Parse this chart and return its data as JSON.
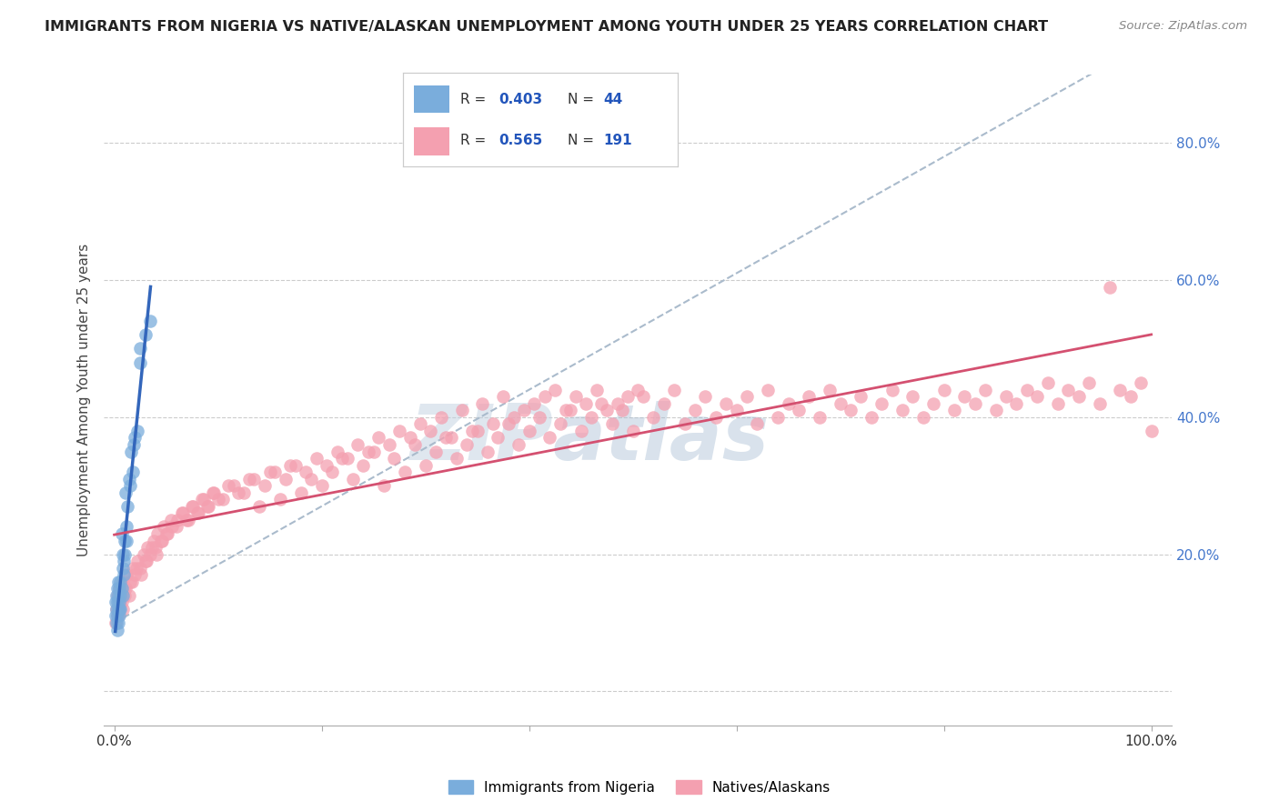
{
  "title": "IMMIGRANTS FROM NIGERIA VS NATIVE/ALASKAN UNEMPLOYMENT AMONG YOUTH UNDER 25 YEARS CORRELATION CHART",
  "source": "Source: ZipAtlas.com",
  "ylabel": "Unemployment Among Youth under 25 years",
  "watermark_zip": "ZIP",
  "watermark_atlas": "atlas",
  "legend_blue_r": "0.403",
  "legend_blue_n": "44",
  "legend_pink_r": "0.565",
  "legend_pink_n": "191",
  "legend_label_blue": "Immigrants from Nigeria",
  "legend_label_pink": "Natives/Alaskans",
  "blue_color": "#7aaddc",
  "pink_color": "#f4a0b0",
  "blue_line_color": "#3366bb",
  "pink_line_color": "#d45070",
  "dashed_line_color": "#aabbcc",
  "background_color": "#ffffff",
  "xlim": [
    -0.01,
    1.02
  ],
  "ylim": [
    -0.05,
    0.9
  ],
  "blue_scatter_x": [
    0.001,
    0.001,
    0.002,
    0.002,
    0.002,
    0.003,
    0.003,
    0.003,
    0.003,
    0.004,
    0.004,
    0.004,
    0.004,
    0.005,
    0.005,
    0.005,
    0.005,
    0.006,
    0.006,
    0.006,
    0.007,
    0.007,
    0.008,
    0.008,
    0.008,
    0.009,
    0.009,
    0.01,
    0.01,
    0.011,
    0.012,
    0.012,
    0.013,
    0.014,
    0.015,
    0.016,
    0.018,
    0.019,
    0.02,
    0.022,
    0.025,
    0.025,
    0.03,
    0.035
  ],
  "blue_scatter_y": [
    0.13,
    0.11,
    0.12,
    0.1,
    0.14,
    0.09,
    0.13,
    0.15,
    0.11,
    0.12,
    0.14,
    0.1,
    0.16,
    0.13,
    0.11,
    0.15,
    0.12,
    0.14,
    0.16,
    0.12,
    0.15,
    0.23,
    0.14,
    0.18,
    0.2,
    0.17,
    0.19,
    0.2,
    0.22,
    0.29,
    0.22,
    0.24,
    0.27,
    0.31,
    0.3,
    0.35,
    0.32,
    0.36,
    0.37,
    0.38,
    0.48,
    0.5,
    0.52,
    0.54
  ],
  "pink_scatter_x": [
    0.001,
    0.002,
    0.003,
    0.003,
    0.004,
    0.005,
    0.005,
    0.006,
    0.007,
    0.008,
    0.008,
    0.009,
    0.01,
    0.012,
    0.015,
    0.018,
    0.02,
    0.022,
    0.025,
    0.028,
    0.03,
    0.032,
    0.035,
    0.038,
    0.04,
    0.042,
    0.045,
    0.048,
    0.05,
    0.055,
    0.06,
    0.065,
    0.07,
    0.075,
    0.08,
    0.085,
    0.09,
    0.095,
    0.1,
    0.11,
    0.12,
    0.13,
    0.14,
    0.15,
    0.16,
    0.17,
    0.18,
    0.19,
    0.2,
    0.21,
    0.22,
    0.23,
    0.24,
    0.25,
    0.26,
    0.27,
    0.28,
    0.29,
    0.3,
    0.31,
    0.32,
    0.33,
    0.34,
    0.35,
    0.36,
    0.37,
    0.38,
    0.39,
    0.4,
    0.41,
    0.42,
    0.43,
    0.44,
    0.45,
    0.46,
    0.47,
    0.48,
    0.49,
    0.5,
    0.51,
    0.52,
    0.53,
    0.54,
    0.55,
    0.56,
    0.57,
    0.58,
    0.59,
    0.6,
    0.61,
    0.62,
    0.63,
    0.64,
    0.65,
    0.66,
    0.67,
    0.68,
    0.69,
    0.7,
    0.71,
    0.72,
    0.73,
    0.74,
    0.75,
    0.76,
    0.77,
    0.78,
    0.79,
    0.8,
    0.81,
    0.82,
    0.83,
    0.84,
    0.85,
    0.86,
    0.87,
    0.88,
    0.89,
    0.9,
    0.91,
    0.92,
    0.93,
    0.94,
    0.95,
    0.96,
    0.97,
    0.98,
    0.99,
    1.0,
    0.004,
    0.007,
    0.011,
    0.014,
    0.017,
    0.021,
    0.026,
    0.031,
    0.036,
    0.041,
    0.046,
    0.051,
    0.056,
    0.061,
    0.066,
    0.071,
    0.076,
    0.081,
    0.086,
    0.091,
    0.096,
    0.105,
    0.115,
    0.125,
    0.135,
    0.145,
    0.155,
    0.165,
    0.175,
    0.185,
    0.195,
    0.205,
    0.215,
    0.225,
    0.235,
    0.245,
    0.255,
    0.265,
    0.275,
    0.285,
    0.295,
    0.305,
    0.315,
    0.325,
    0.335,
    0.345,
    0.355,
    0.365,
    0.375,
    0.385,
    0.395,
    0.405,
    0.415,
    0.425,
    0.435,
    0.445,
    0.455,
    0.465,
    0.475,
    0.485,
    0.495,
    0.505
  ],
  "pink_scatter_y": [
    0.1,
    0.12,
    0.11,
    0.14,
    0.13,
    0.15,
    0.12,
    0.13,
    0.14,
    0.16,
    0.12,
    0.15,
    0.14,
    0.17,
    0.16,
    0.18,
    0.17,
    0.19,
    0.18,
    0.2,
    0.19,
    0.21,
    0.2,
    0.22,
    0.21,
    0.23,
    0.22,
    0.24,
    0.23,
    0.25,
    0.24,
    0.26,
    0.25,
    0.27,
    0.26,
    0.28,
    0.27,
    0.29,
    0.28,
    0.3,
    0.29,
    0.31,
    0.27,
    0.32,
    0.28,
    0.33,
    0.29,
    0.31,
    0.3,
    0.32,
    0.34,
    0.31,
    0.33,
    0.35,
    0.3,
    0.34,
    0.32,
    0.36,
    0.33,
    0.35,
    0.37,
    0.34,
    0.36,
    0.38,
    0.35,
    0.37,
    0.39,
    0.36,
    0.38,
    0.4,
    0.37,
    0.39,
    0.41,
    0.38,
    0.4,
    0.42,
    0.39,
    0.41,
    0.38,
    0.43,
    0.4,
    0.42,
    0.44,
    0.39,
    0.41,
    0.43,
    0.4,
    0.42,
    0.41,
    0.43,
    0.39,
    0.44,
    0.4,
    0.42,
    0.41,
    0.43,
    0.4,
    0.44,
    0.42,
    0.41,
    0.43,
    0.4,
    0.42,
    0.44,
    0.41,
    0.43,
    0.4,
    0.42,
    0.44,
    0.41,
    0.43,
    0.42,
    0.44,
    0.41,
    0.43,
    0.42,
    0.44,
    0.43,
    0.45,
    0.42,
    0.44,
    0.43,
    0.45,
    0.42,
    0.59,
    0.44,
    0.43,
    0.45,
    0.38,
    0.11,
    0.13,
    0.15,
    0.14,
    0.16,
    0.18,
    0.17,
    0.19,
    0.21,
    0.2,
    0.22,
    0.23,
    0.24,
    0.25,
    0.26,
    0.25,
    0.27,
    0.26,
    0.28,
    0.27,
    0.29,
    0.28,
    0.3,
    0.29,
    0.31,
    0.3,
    0.32,
    0.31,
    0.33,
    0.32,
    0.34,
    0.33,
    0.35,
    0.34,
    0.36,
    0.35,
    0.37,
    0.36,
    0.38,
    0.37,
    0.39,
    0.38,
    0.4,
    0.37,
    0.41,
    0.38,
    0.42,
    0.39,
    0.43,
    0.4,
    0.41,
    0.42,
    0.43,
    0.44,
    0.41,
    0.43,
    0.42,
    0.44,
    0.41,
    0.42,
    0.43,
    0.44
  ]
}
